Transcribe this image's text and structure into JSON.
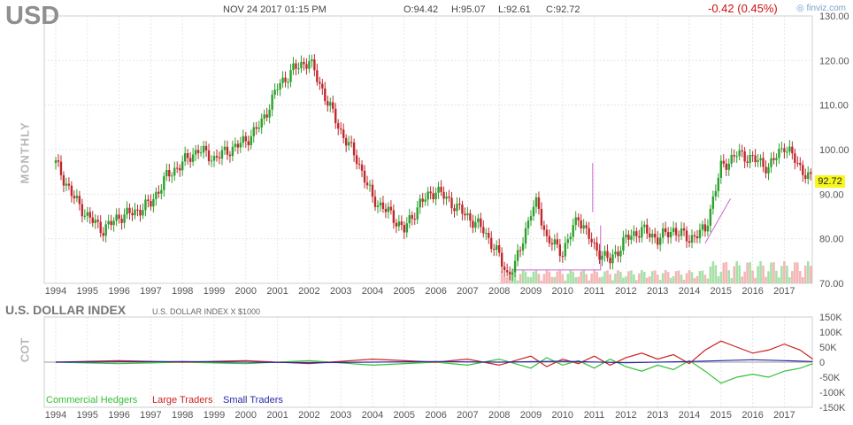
{
  "header": {
    "ticker": "USD",
    "datetime": "NOV 24 2017 01:15 PM",
    "open": "O:94.42",
    "high": "H:95.07",
    "low": "L:92.61",
    "close": "C:92.72",
    "change": "-0.42 (0.45%)",
    "brand": "finviz.com",
    "period": "MONTHLY"
  },
  "lower_panel": {
    "instrument": "U.S. DOLLAR INDEX",
    "subtitle": "U.S. DOLLAR INDEX X $1000",
    "section_label": "COT"
  },
  "colors": {
    "up": "#2ca02c",
    "down": "#c0282d",
    "volume_up": "#a8e0a8",
    "volume_down": "#f4b6b6",
    "commercial": "#35c035",
    "large": "#cc2222",
    "small": "#2a2aa8",
    "trendline": "#cc66cc",
    "last_price_badge": "#f7f720"
  },
  "chart_data": [
    {
      "type": "candlestick",
      "title": "USD",
      "x_axis_labels": [
        "1994",
        "1995",
        "1996",
        "1997",
        "1998",
        "1999",
        "2000",
        "2001",
        "2002",
        "2003",
        "2004",
        "2005",
        "2006",
        "2007",
        "2008",
        "2009",
        "2010",
        "2011",
        "2012",
        "2013",
        "2014",
        "2015",
        "2016",
        "2017"
      ],
      "y_ticks": [
        "130.00",
        "120.00",
        "110.00",
        "100.00",
        "90.00",
        "80.00",
        "70.00"
      ],
      "ylim": [
        70,
        130
      ],
      "last_price": "92.72",
      "grid": true,
      "series": [
        {
          "name": "USD",
          "x": [
            1994.0,
            1994.5,
            1995.0,
            1995.5,
            1996.0,
            1996.5,
            1997.0,
            1997.5,
            1998.0,
            1998.5,
            1999.0,
            1999.5,
            2000.0,
            2000.5,
            2001.0,
            2001.5,
            2002.0,
            2002.5,
            2003.0,
            2003.5,
            2004.0,
            2004.5,
            2005.0,
            2005.5,
            2006.0,
            2006.5,
            2007.0,
            2007.5,
            2008.0,
            2008.25,
            2008.5,
            2009.0,
            2009.2,
            2009.5,
            2010.0,
            2010.5,
            2011.0,
            2011.5,
            2012.0,
            2012.5,
            2013.0,
            2013.5,
            2014.0,
            2014.5,
            2015.0,
            2015.5,
            2016.0,
            2016.5,
            2017.0,
            2017.5,
            2017.9
          ],
          "y": [
            97,
            90,
            85,
            82,
            85,
            86,
            88,
            94,
            97,
            100,
            98,
            100,
            102,
            106,
            114,
            118,
            120,
            112,
            104,
            98,
            89,
            86,
            82,
            88,
            91,
            88,
            85,
            82,
            76,
            72,
            74,
            86,
            88,
            80,
            77,
            85,
            78,
            75,
            80,
            82,
            80,
            82,
            80,
            82,
            96,
            99,
            98,
            96,
            101,
            96,
            92.7
          ]
        }
      ]
    },
    {
      "type": "line",
      "title": "U.S. DOLLAR INDEX",
      "y_ticks": [
        "150K",
        "100K",
        "50K",
        "0",
        "-50K",
        "-100K",
        "-150K"
      ],
      "ylim": [
        -150000,
        150000
      ],
      "series": [
        {
          "name": "Commercial Hedgers",
          "x": [
            1994,
            1996,
            1998,
            2000,
            2002,
            2004,
            2006,
            2007,
            2008,
            2009,
            2009.5,
            2010,
            2010.5,
            2011,
            2011.5,
            2012,
            2012.5,
            2013,
            2013.5,
            2014,
            2014.5,
            2015,
            2015.5,
            2016,
            2016.5,
            2017,
            2017.5,
            2017.9
          ],
          "y": [
            0,
            -5000,
            0,
            -5000,
            5000,
            -10000,
            0,
            -10000,
            10000,
            -20000,
            15000,
            -10000,
            5000,
            -20000,
            10000,
            -15000,
            -30000,
            -10000,
            -25000,
            5000,
            -30000,
            -70000,
            -50000,
            -40000,
            -50000,
            -30000,
            -20000,
            -5000
          ]
        },
        {
          "name": "Large Traders",
          "x": [
            1994,
            1996,
            1998,
            2000,
            2002,
            2004,
            2006,
            2007,
            2008,
            2009,
            2009.5,
            2010,
            2010.5,
            2011,
            2011.5,
            2012,
            2012.5,
            2013,
            2013.5,
            2014,
            2014.5,
            2015,
            2015.5,
            2016,
            2016.5,
            2017,
            2017.5,
            2017.9
          ],
          "y": [
            0,
            5000,
            0,
            5000,
            -5000,
            10000,
            0,
            10000,
            -10000,
            20000,
            -15000,
            10000,
            -5000,
            20000,
            -10000,
            15000,
            30000,
            10000,
            25000,
            -5000,
            40000,
            70000,
            50000,
            30000,
            40000,
            60000,
            40000,
            10000
          ]
        },
        {
          "name": "Small Traders",
          "x": [
            1994,
            1998,
            2002,
            2006,
            2008,
            2010,
            2012,
            2014,
            2015,
            2016,
            2017,
            2017.9
          ],
          "y": [
            0,
            2000,
            -2000,
            2000,
            0,
            3000,
            -2000,
            2000,
            5000,
            8000,
            5000,
            2000
          ]
        }
      ],
      "legend": "bottom-left"
    }
  ]
}
